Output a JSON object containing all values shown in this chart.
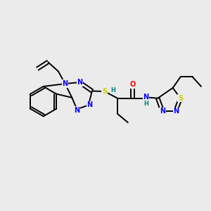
{
  "background_color": "#ebebeb",
  "atom_colors": {
    "N": "#0000ff",
    "S": "#cccc00",
    "O": "#ff0000",
    "H": "#008080",
    "C": "#000000"
  }
}
